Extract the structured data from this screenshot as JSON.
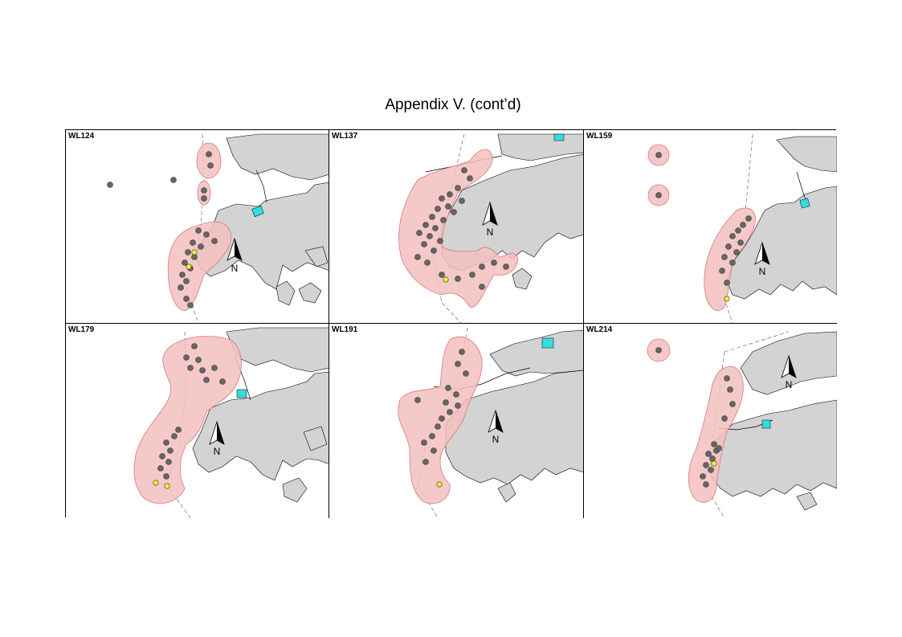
{
  "page": {
    "title": "Appendix V.  (cont’d)"
  },
  "legend_colors": {
    "range": "#f5c0c0",
    "range_outline": "#d87878",
    "land": "#d3d3d3",
    "location": "#666666",
    "capture": "#ffee33",
    "facility": "#33dddd"
  },
  "panels": [
    {
      "label": "WL124",
      "north_label": "N"
    },
    {
      "label": "WL137",
      "north_label": "N"
    },
    {
      "label": "WL159",
      "north_label": "N"
    },
    {
      "label": "WL179",
      "north_label": "N"
    },
    {
      "label": "WL191",
      "north_label": "N"
    },
    {
      "label": "WL214",
      "north_label": "N"
    }
  ]
}
